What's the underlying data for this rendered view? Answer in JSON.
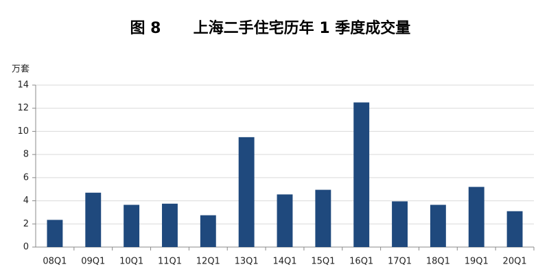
{
  "chart_data": {
    "type": "bar",
    "figure_label": "图 8",
    "title": "上海二手住宅历年 1 季度成交量",
    "y_label": "万套",
    "categories": [
      "08Q1",
      "09Q1",
      "10Q1",
      "11Q1",
      "12Q1",
      "13Q1",
      "14Q1",
      "15Q1",
      "16Q1",
      "17Q1",
      "18Q1",
      "19Q1",
      "20Q1"
    ],
    "values": [
      2.35,
      4.7,
      3.65,
      3.75,
      2.75,
      9.5,
      4.55,
      4.95,
      12.5,
      3.95,
      3.65,
      5.2,
      3.1
    ],
    "color": "#1f497d",
    "ylim": [
      0,
      14
    ],
    "yticks": [
      0,
      2,
      4,
      6,
      8,
      10,
      12,
      14
    ],
    "grid": true
  }
}
